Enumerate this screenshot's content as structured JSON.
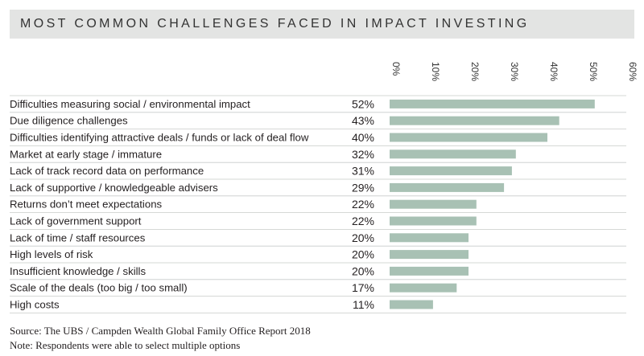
{
  "title": "MOST COMMON CHALLENGES FACED IN IMPACT INVESTING",
  "source": "Source: The UBS / Campden Wealth Global Family Office Report 2018",
  "note": "Note: Respondents were able to select multiple options",
  "colors": {
    "bar": "#a8c1b4",
    "title_band": "#e3e4e3",
    "divider": "#c8cbc9"
  },
  "chart_data": {
    "type": "bar",
    "orientation": "horizontal",
    "categories": [
      "Difficulties measuring social / environmental impact",
      "Due diligence challenges",
      "Difficulties identifying attractive deals / funds or lack of deal flow",
      "Market at early stage / immature",
      "Lack of track record data on performance",
      "Lack of supportive / knowledgeable advisers",
      "Returns don’t meet expectations",
      "Lack of government support",
      "Lack of time / staff resources",
      "High levels of risk",
      "Insufficient knowledge / skills",
      "Scale of the deals (too big / too small)",
      "High costs"
    ],
    "values": [
      52,
      43,
      40,
      32,
      31,
      29,
      22,
      22,
      20,
      20,
      20,
      17,
      11
    ],
    "value_labels": [
      "52%",
      "43%",
      "40%",
      "32%",
      "31%",
      "29%",
      "22%",
      "22%",
      "20%",
      "20%",
      "20%",
      "17%",
      "11%"
    ],
    "xlim": [
      0,
      60
    ],
    "ticks": [
      0,
      10,
      20,
      30,
      40,
      50,
      60
    ],
    "tick_labels": [
      "0%",
      "10%",
      "20%",
      "30%",
      "40%",
      "50%",
      "60%"
    ],
    "tick_position": "top",
    "tick_rotation": "vertical",
    "grid": false,
    "legend": "none"
  }
}
